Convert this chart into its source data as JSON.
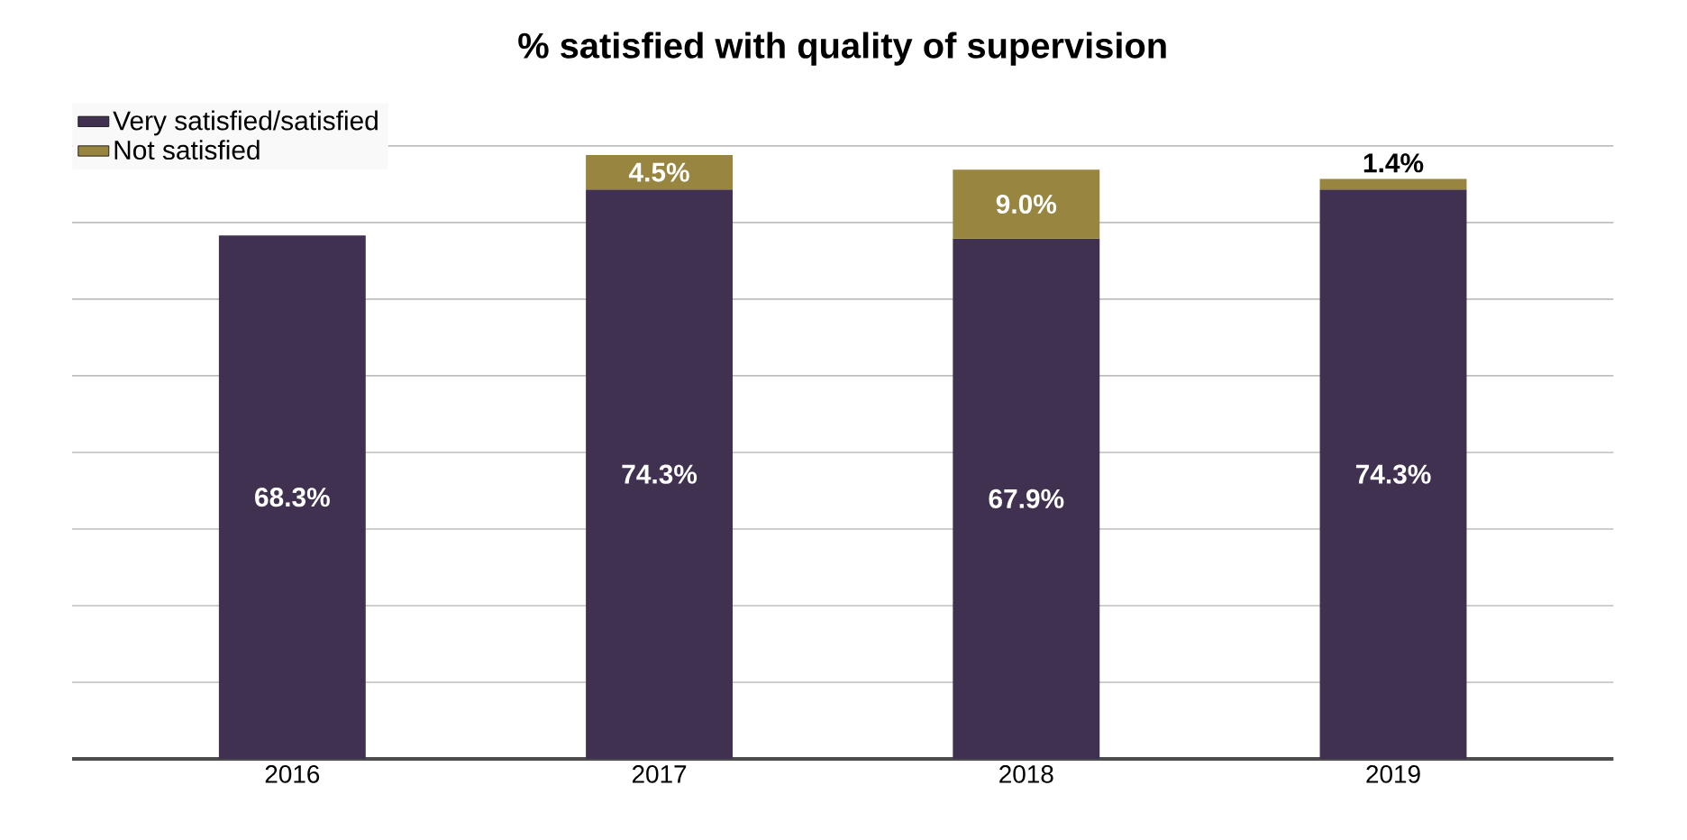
{
  "chart_data": {
    "type": "bar",
    "stacked": true,
    "title": "% satisfied with quality of supervision",
    "categories": [
      "2016",
      "2017",
      "2018",
      "2019"
    ],
    "series": [
      {
        "name": "Very satisfied/satisfied",
        "color": "#403151",
        "values": [
          68.3,
          74.3,
          67.9,
          74.3
        ],
        "value_labels": [
          "68.3%",
          "74.3%",
          "67.9%",
          "74.3%"
        ]
      },
      {
        "name": "Not satisfied",
        "color": "#988540",
        "values": [
          null,
          4.5,
          9.0,
          1.4
        ],
        "value_labels": [
          null,
          "4.5%",
          "9.0%",
          "1.4%"
        ]
      }
    ],
    "grid": "y",
    "legend": "top left",
    "tick_labels": "x"
  }
}
